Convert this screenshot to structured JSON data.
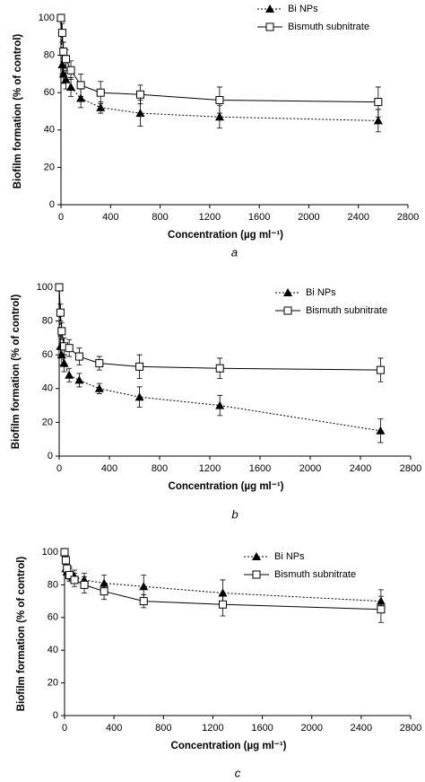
{
  "chart_data": [
    {
      "type": "line",
      "caption": "a",
      "x_label": "Concentration (µg ml⁻¹)",
      "y_label": "Biofilm formation (% of control)",
      "x": [
        0,
        10,
        20,
        40,
        80,
        160,
        320,
        640,
        1280,
        2560
      ],
      "series": [
        {
          "name": "Bi NPs",
          "color": "#000000",
          "dash": "dotted",
          "marker": "triangle",
          "values": [
            100,
            75,
            70,
            67,
            63,
            57,
            52,
            49,
            47,
            45
          ],
          "errors": [
            0,
            5,
            5,
            5,
            5,
            5,
            3,
            7,
            6,
            6
          ]
        },
        {
          "name": "Bismuth subnitrate",
          "color": "#000000",
          "dash": "solid",
          "marker": "square",
          "values": [
            100,
            92,
            82,
            78,
            72,
            64,
            60,
            59,
            56,
            55
          ],
          "errors": [
            0,
            5,
            5,
            5,
            5,
            6,
            6,
            5,
            7,
            8
          ]
        }
      ],
      "xlim": [
        0,
        2800
      ],
      "xticks": [
        0,
        400,
        800,
        1200,
        1600,
        2000,
        2400,
        2800
      ],
      "ylim": [
        0,
        100
      ],
      "yticks": [
        0,
        20,
        40,
        60,
        80,
        100
      ],
      "legend": "top-right"
    },
    {
      "type": "line",
      "caption": "b",
      "x_label": "Concentration (µg ml⁻¹)",
      "y_label": "Biofilm formation (% of control)",
      "x": [
        0,
        10,
        20,
        40,
        80,
        160,
        320,
        640,
        1280,
        2560
      ],
      "series": [
        {
          "name": "Bi NPs",
          "color": "#000000",
          "dash": "dotted",
          "marker": "triangle",
          "values": [
            100,
            65,
            60,
            55,
            48,
            45,
            40,
            35,
            30,
            15
          ],
          "errors": [
            0,
            6,
            6,
            5,
            4,
            4,
            3,
            6,
            6,
            7
          ]
        },
        {
          "name": "Bismuth subnitrate",
          "color": "#000000",
          "dash": "solid",
          "marker": "square",
          "values": [
            100,
            85,
            74,
            65,
            64,
            59,
            55,
            53,
            52,
            51
          ],
          "errors": [
            0,
            5,
            5,
            5,
            5,
            5,
            4,
            7,
            6,
            7
          ]
        }
      ],
      "xlim": [
        0,
        2800
      ],
      "xticks": [
        0,
        400,
        800,
        1200,
        1600,
        2000,
        2400,
        2800
      ],
      "ylim": [
        0,
        100
      ],
      "yticks": [
        0,
        20,
        40,
        60,
        80,
        100
      ],
      "legend": "top-right"
    },
    {
      "type": "line",
      "caption": "c",
      "x_label": "Concentration (µg ml⁻¹)",
      "y_label": "Biofilm formation (% of control)",
      "x": [
        0,
        10,
        20,
        40,
        80,
        160,
        320,
        640,
        1280,
        2560
      ],
      "series": [
        {
          "name": "Bi NPs",
          "color": "#000000",
          "dash": "dotted",
          "marker": "triangle",
          "values": [
            100,
            90,
            88,
            87,
            85,
            83,
            81,
            79,
            75,
            70
          ],
          "errors": [
            0,
            4,
            4,
            4,
            4,
            4,
            5,
            7,
            8,
            7
          ]
        },
        {
          "name": "Bismuth subnitrate",
          "color": "#000000",
          "dash": "solid",
          "marker": "square",
          "values": [
            100,
            95,
            90,
            86,
            83,
            80,
            76,
            70,
            68,
            65
          ],
          "errors": [
            0,
            4,
            4,
            4,
            4,
            5,
            5,
            4,
            7,
            8
          ]
        }
      ],
      "xlim": [
        0,
        2800
      ],
      "xticks": [
        0,
        400,
        800,
        1200,
        1600,
        2000,
        2400,
        2800
      ],
      "ylim": [
        0,
        100
      ],
      "yticks": [
        0,
        20,
        40,
        60,
        80,
        100
      ],
      "legend": "top-right"
    }
  ]
}
